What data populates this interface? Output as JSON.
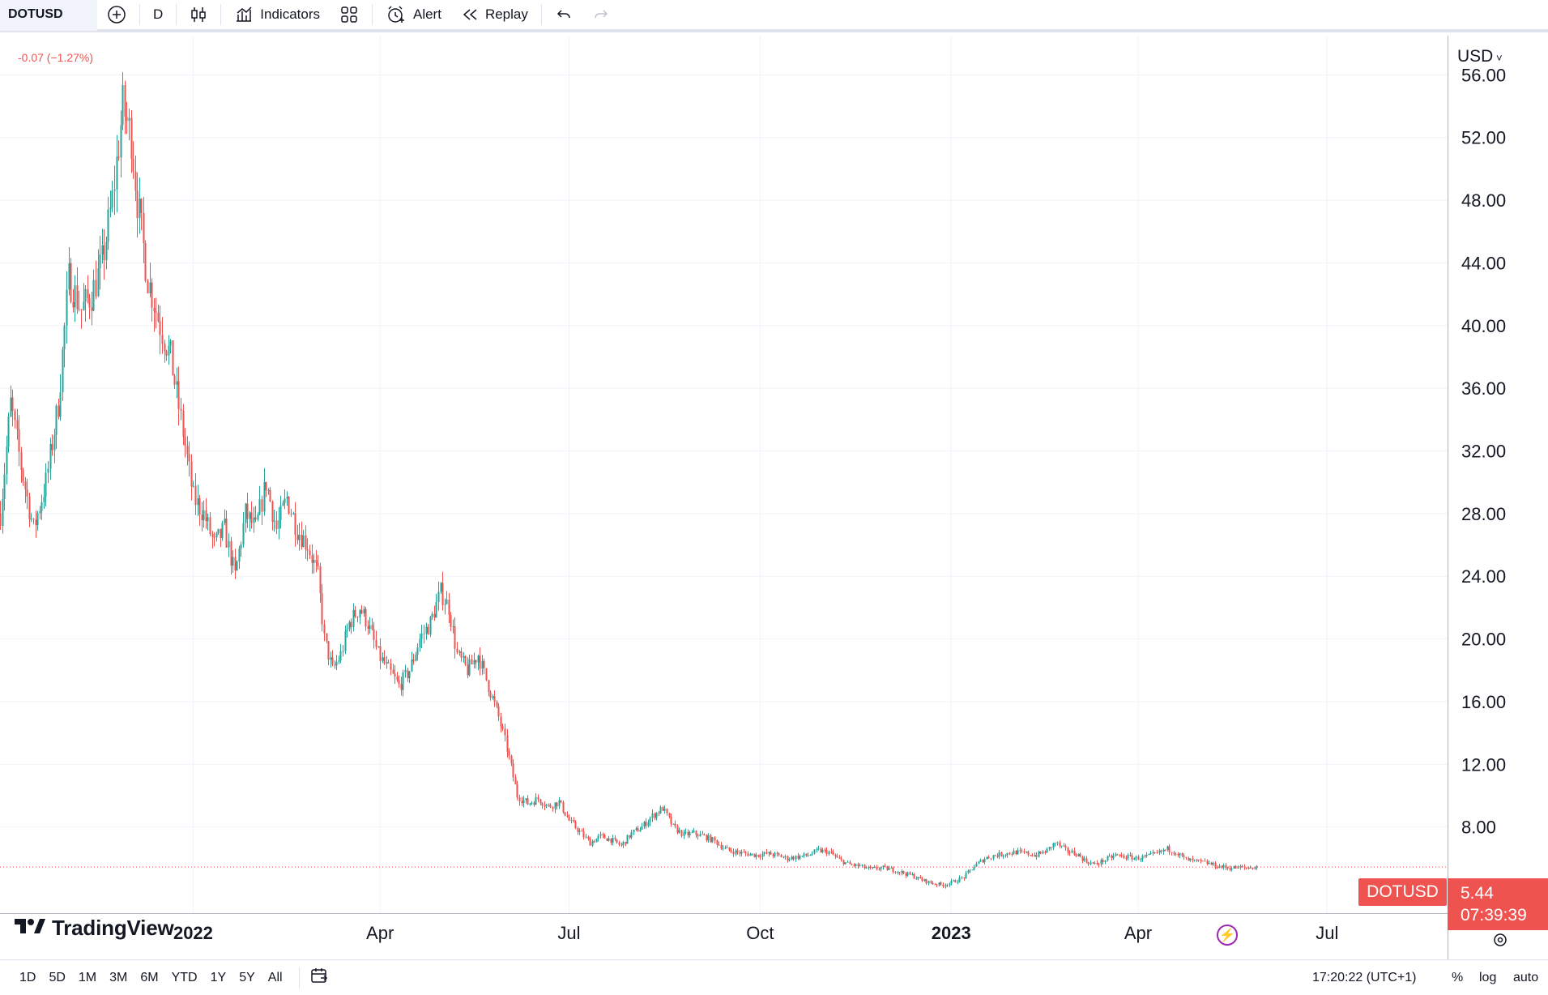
{
  "toolbar": {
    "symbol": "DOTUSD",
    "interval": "D",
    "indicators_label": "Indicators",
    "alert_label": "Alert",
    "replay_label": "Replay"
  },
  "header": {
    "change": "-0.07 (−1.27%)",
    "currency": "USD"
  },
  "brand": "TradingView",
  "price_scale": {
    "symbol_label": "DOTUSD",
    "last_price": "5.44",
    "countdown": "07:39:39"
  },
  "bottombar": {
    "ranges": [
      "1D",
      "5D",
      "1M",
      "3M",
      "6M",
      "YTD",
      "1Y",
      "5Y",
      "All"
    ],
    "time": "17:20:22 (UTC+1)",
    "percent": "%",
    "log": "log",
    "auto": "auto"
  },
  "colors": {
    "up": "#26a69a",
    "down": "#ef5350",
    "grid": "#f0f3fa",
    "axis_text": "#131722"
  },
  "chart_data": {
    "type": "candlestick",
    "symbol": "DOTUSD",
    "interval": "1D",
    "y_ticks": [
      8,
      12,
      16,
      20,
      24,
      28,
      32,
      36,
      40,
      44,
      48,
      52,
      56
    ],
    "y_tick_labels": [
      "8.00",
      "12.00",
      "16.00",
      "20.00",
      "24.00",
      "28.00",
      "32.00",
      "36.00",
      "40.00",
      "44.00",
      "48.00",
      "52.00",
      "56.00"
    ],
    "ylim": [
      2.5,
      58.5
    ],
    "x_range": [
      "2021-09-30",
      "2023-08-28"
    ],
    "x_ticks": [
      {
        "date": "2022-01-01",
        "label": "2022",
        "bold": true
      },
      {
        "date": "2022-04-01",
        "label": "Apr",
        "bold": false
      },
      {
        "date": "2022-07-01",
        "label": "Jul",
        "bold": false
      },
      {
        "date": "2022-10-01",
        "label": "Oct",
        "bold": false
      },
      {
        "date": "2023-01-01",
        "label": "2023",
        "bold": true
      },
      {
        "date": "2023-04-01",
        "label": "Apr",
        "bold": false
      },
      {
        "date": "2023-07-01",
        "label": "Jul",
        "bold": false
      }
    ],
    "last_price": 5.44,
    "close_path": [
      [
        "2021-09-30",
        28
      ],
      [
        "2021-10-05",
        35
      ],
      [
        "2021-10-10",
        31
      ],
      [
        "2021-10-16",
        27
      ],
      [
        "2021-10-22",
        30
      ],
      [
        "2021-10-28",
        35
      ],
      [
        "2021-11-02",
        43
      ],
      [
        "2021-11-08",
        41
      ],
      [
        "2021-11-13",
        42
      ],
      [
        "2021-11-18",
        44
      ],
      [
        "2021-11-23",
        48
      ],
      [
        "2021-11-28",
        54
      ],
      [
        "2021-12-02",
        52
      ],
      [
        "2021-12-05",
        48
      ],
      [
        "2021-12-10",
        43
      ],
      [
        "2021-12-16",
        40
      ],
      [
        "2021-12-21",
        38
      ],
      [
        "2021-12-26",
        34
      ],
      [
        "2022-01-01",
        29
      ],
      [
        "2022-01-06",
        28
      ],
      [
        "2022-01-11",
        26
      ],
      [
        "2022-01-16",
        27
      ],
      [
        "2022-01-21",
        24
      ],
      [
        "2022-01-26",
        28
      ],
      [
        "2022-01-31",
        27
      ],
      [
        "2022-02-05",
        30
      ],
      [
        "2022-02-10",
        27
      ],
      [
        "2022-02-15",
        29
      ],
      [
        "2022-02-20",
        27
      ],
      [
        "2022-02-25",
        26
      ],
      [
        "2022-03-02",
        24
      ],
      [
        "2022-03-05",
        20
      ],
      [
        "2022-03-09",
        18
      ],
      [
        "2022-03-13",
        19
      ],
      [
        "2022-03-17",
        21
      ],
      [
        "2022-03-22",
        22
      ],
      [
        "2022-03-26",
        21
      ],
      [
        "2022-03-31",
        19
      ],
      [
        "2022-04-05",
        18
      ],
      [
        "2022-04-10",
        17
      ],
      [
        "2022-04-15",
        18
      ],
      [
        "2022-04-20",
        20
      ],
      [
        "2022-04-25",
        21
      ],
      [
        "2022-04-30",
        23
      ],
      [
        "2022-05-04",
        22
      ],
      [
        "2022-05-08",
        19
      ],
      [
        "2022-05-13",
        18
      ],
      [
        "2022-05-18",
        19
      ],
      [
        "2022-05-23",
        17
      ],
      [
        "2022-05-28",
        15
      ],
      [
        "2022-06-01",
        13
      ],
      [
        "2022-06-06",
        10
      ],
      [
        "2022-06-11",
        9.5
      ],
      [
        "2022-06-16",
        9.8
      ],
      [
        "2022-06-21",
        9.3
      ],
      [
        "2022-06-26",
        9.6
      ],
      [
        "2022-07-01",
        8.4
      ],
      [
        "2022-07-06",
        7.7
      ],
      [
        "2022-07-11",
        7.0
      ],
      [
        "2022-07-16",
        7.4
      ],
      [
        "2022-07-21",
        7.2
      ],
      [
        "2022-07-26",
        6.8
      ],
      [
        "2022-07-31",
        7.6
      ],
      [
        "2022-08-05",
        8.0
      ],
      [
        "2022-08-10",
        8.7
      ],
      [
        "2022-08-15",
        9.2
      ],
      [
        "2022-08-20",
        8.0
      ],
      [
        "2022-08-25",
        7.5
      ],
      [
        "2022-08-30",
        7.6
      ],
      [
        "2022-09-04",
        7.4
      ],
      [
        "2022-09-09",
        7.1
      ],
      [
        "2022-09-14",
        6.6
      ],
      [
        "2022-09-19",
        6.4
      ],
      [
        "2022-09-24",
        6.3
      ],
      [
        "2022-09-29",
        6.2
      ],
      [
        "2022-10-04",
        6.3
      ],
      [
        "2022-10-09",
        6.2
      ],
      [
        "2022-10-14",
        6.0
      ],
      [
        "2022-10-19",
        6.1
      ],
      [
        "2022-10-24",
        6.2
      ],
      [
        "2022-10-29",
        6.5
      ],
      [
        "2022-11-03",
        6.4
      ],
      [
        "2022-11-08",
        5.9
      ],
      [
        "2022-11-13",
        5.6
      ],
      [
        "2022-11-18",
        5.5
      ],
      [
        "2022-11-23",
        5.3
      ],
      [
        "2022-11-28",
        5.4
      ],
      [
        "2022-12-03",
        5.3
      ],
      [
        "2022-12-08",
        5.1
      ],
      [
        "2022-12-13",
        4.9
      ],
      [
        "2022-12-18",
        4.6
      ],
      [
        "2022-12-23",
        4.4
      ],
      [
        "2022-12-28",
        4.3
      ],
      [
        "2023-01-02",
        4.5
      ],
      [
        "2023-01-07",
        4.8
      ],
      [
        "2023-01-12",
        5.5
      ],
      [
        "2023-01-17",
        6.0
      ],
      [
        "2023-01-22",
        6.2
      ],
      [
        "2023-01-27",
        6.3
      ],
      [
        "2023-02-01",
        6.4
      ],
      [
        "2023-02-06",
        6.3
      ],
      [
        "2023-02-11",
        6.2
      ],
      [
        "2023-02-16",
        6.5
      ],
      [
        "2023-02-20",
        7.0
      ],
      [
        "2023-02-25",
        6.5
      ],
      [
        "2023-03-02",
        6.3
      ],
      [
        "2023-03-07",
        5.8
      ],
      [
        "2023-03-11",
        5.6
      ],
      [
        "2023-03-16",
        5.9
      ],
      [
        "2023-03-21",
        6.2
      ],
      [
        "2023-03-26",
        6.1
      ],
      [
        "2023-03-31",
        6.0
      ],
      [
        "2023-04-05",
        6.1
      ],
      [
        "2023-04-10",
        6.3
      ],
      [
        "2023-04-15",
        6.6
      ],
      [
        "2023-04-19",
        6.4
      ],
      [
        "2023-04-24",
        5.9
      ],
      [
        "2023-04-29",
        5.8
      ],
      [
        "2023-05-04",
        5.7
      ],
      [
        "2023-05-09",
        5.5
      ],
      [
        "2023-05-14",
        5.4
      ],
      [
        "2023-05-19",
        5.4
      ],
      [
        "2023-05-24",
        5.4
      ],
      [
        "2023-05-28",
        5.44
      ]
    ]
  }
}
